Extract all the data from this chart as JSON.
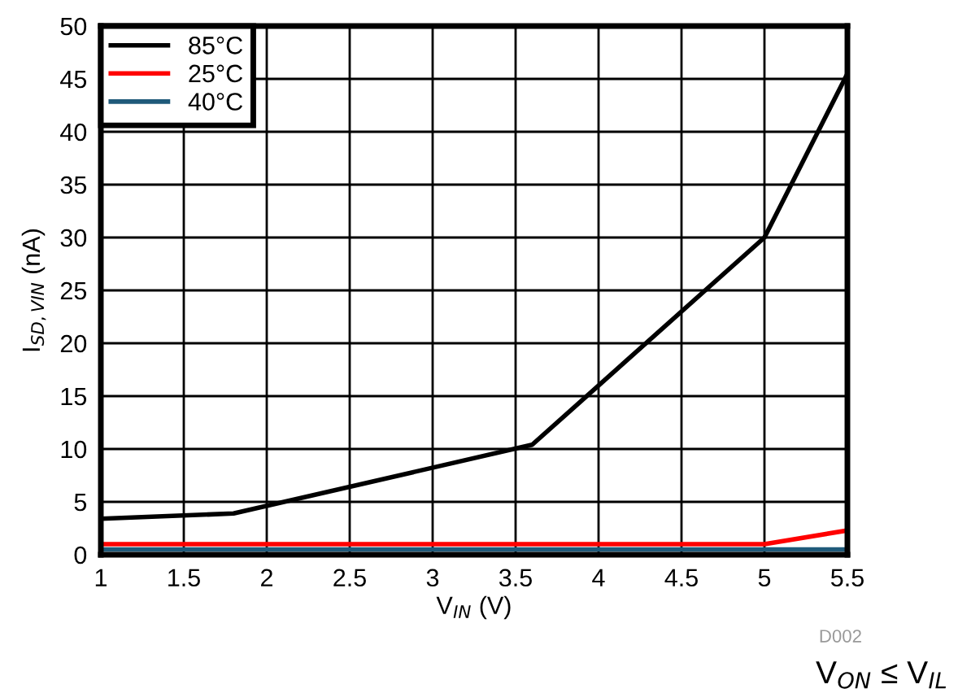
{
  "chart_data": {
    "type": "line",
    "xlabel": "V$_{IN}$ (V)",
    "ylabel": "I$_{SD,VIN}$ (nA)",
    "x": [
      1,
      1.8,
      3.6,
      5,
      5.5
    ],
    "series": [
      {
        "name": "85°C",
        "color": "#000000",
        "values": [
          3.4,
          3.9,
          10.4,
          30,
          45.5
        ]
      },
      {
        "name": "25°C",
        "color": "#ff0000",
        "values": [
          1,
          1,
          1,
          1,
          2.3
        ]
      },
      {
        "name": "40°C",
        "color": "#1f5a7a",
        "values": [
          0.5,
          0.5,
          0.5,
          0.5,
          0.5
        ]
      }
    ],
    "xlim": [
      1,
      5.5
    ],
    "xticks": [
      1,
      1.5,
      2,
      2.5,
      3,
      3.5,
      4,
      4.5,
      5,
      5.5
    ],
    "ylim": [
      0,
      50
    ],
    "yticks": [
      0,
      5,
      10,
      15,
      20,
      25,
      30,
      35,
      40,
      45,
      50
    ],
    "grid": true,
    "legend": "top left",
    "marker": "none",
    "line_style": "solid",
    "annotations": [
      "D002",
      "V$_{ON}$ ≤ V$_{IL}$"
    ]
  }
}
